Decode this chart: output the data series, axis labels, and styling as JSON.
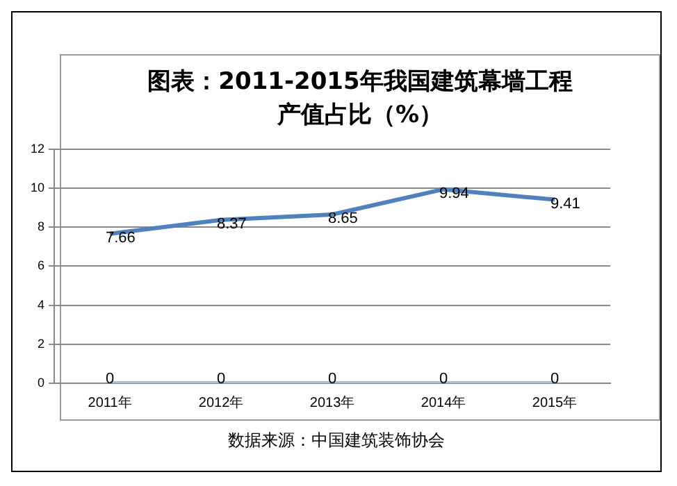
{
  "chart_data": {
    "type": "line",
    "title": "图表：2011-2015年我国建筑幕墙工程产值占比（%）",
    "categories": [
      "2011年",
      "2012年",
      "2013年",
      "2014年",
      "2015年"
    ],
    "series": [
      {
        "color": "#4f81bd",
        "values": [
          7.66,
          8.37,
          8.65,
          9.94,
          9.41
        ]
      },
      {
        "color": "#a7bfe0",
        "values": [
          0,
          0,
          0,
          0,
          0
        ]
      }
    ],
    "ylim": [
      0,
      12
    ],
    "yticks": [
      0,
      2,
      4,
      6,
      8,
      10,
      12
    ],
    "grid": "y",
    "data_labels": true,
    "marker": "none",
    "line_style": "solid",
    "annotations": [
      "数据来源：中国建筑装饰协会"
    ]
  }
}
